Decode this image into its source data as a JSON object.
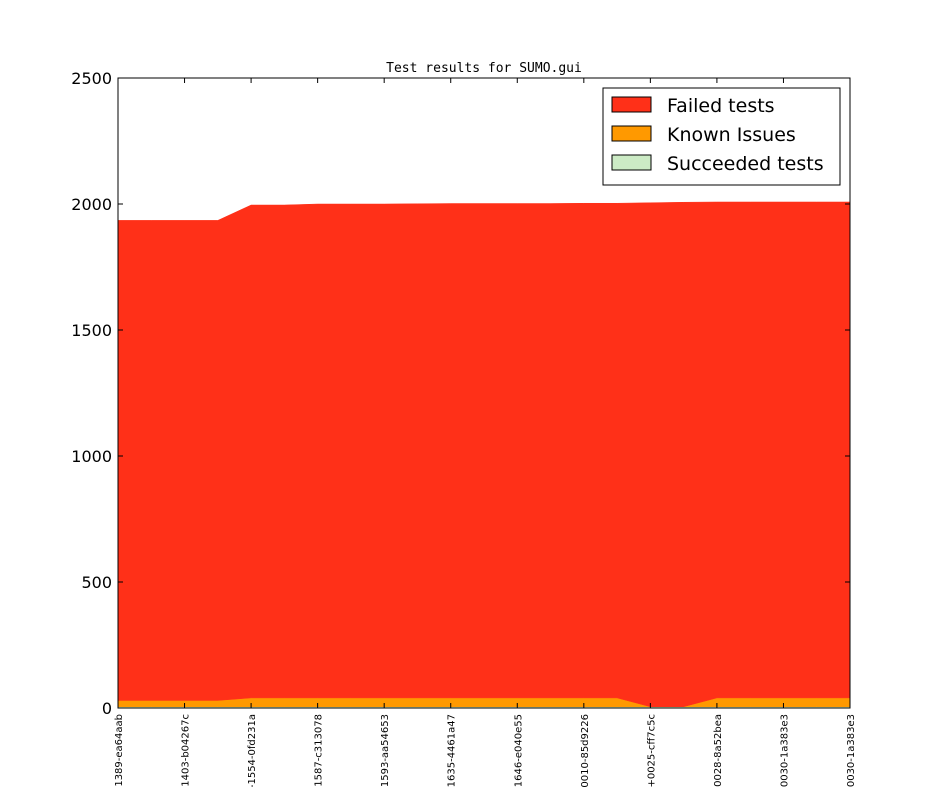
{
  "chart_data": {
    "type": "area",
    "title": "Test results for SUMO.gui",
    "xlabel": "",
    "ylabel": "",
    "ylim": [
      0,
      2500
    ],
    "yticks": [
      0,
      500,
      1000,
      1500,
      2000,
      2500
    ],
    "grid": false,
    "legend_position": "top-right",
    "stacked": true,
    "x": [
      "1389-ea64aab",
      "",
      "1403-b04267c",
      "",
      "-1554-0fd231a",
      "",
      "1587-c313078",
      "",
      "1593-aa54653",
      "",
      "1635-4461a47",
      "",
      "1646-e040e55",
      "",
      "0010-85d9226",
      "",
      "+0025-cff7c5c",
      "",
      "0028-8a52bea",
      "",
      "0030-1a383e3",
      "",
      "0030-1a383e3"
    ],
    "series": [
      {
        "name": "Succeeded tests",
        "color": "#ccebc5",
        "values": [
          5,
          5,
          5,
          5,
          5,
          5,
          5,
          5,
          5,
          5,
          5,
          5,
          5,
          5,
          5,
          5,
          5,
          5,
          5,
          5,
          5,
          5,
          5
        ]
      },
      {
        "name": "Known Issues",
        "color": "#ff9900",
        "values": [
          25,
          25,
          25,
          25,
          35,
          35,
          35,
          35,
          35,
          35,
          35,
          35,
          35,
          35,
          35,
          35,
          0,
          0,
          35,
          35,
          35,
          35,
          35
        ]
      },
      {
        "name": "Failed tests",
        "color": "#ff3018",
        "values": [
          1905,
          1905,
          1905,
          1905,
          1956,
          1956,
          1960,
          1960,
          1960,
          1961,
          1962,
          1962,
          1962,
          1962,
          1963,
          1963,
          2000,
          2002,
          1968,
          1968,
          1968,
          1968,
          1968
        ]
      }
    ]
  }
}
